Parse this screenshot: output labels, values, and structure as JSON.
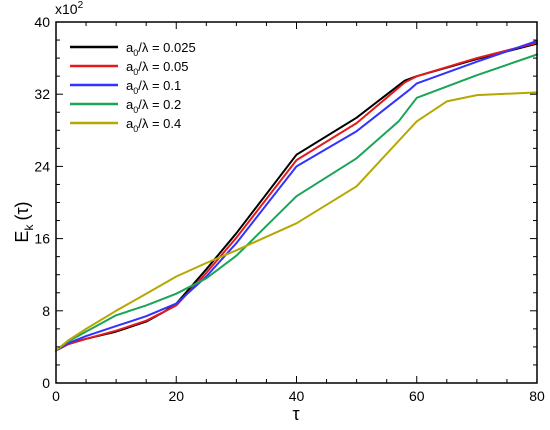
{
  "chart_data": {
    "type": "line",
    "xlabel": "τ",
    "ylabel": "E",
    "ylabel_subscript": "k",
    "ylabel_suffix": "(τ)",
    "y_multiplier": "x10",
    "y_multiplier_exp": "2",
    "xlim": [
      0,
      80
    ],
    "ylim": [
      0,
      40
    ],
    "x_ticks": [
      0,
      20,
      40,
      60,
      80
    ],
    "y_ticks": [
      0,
      8,
      16,
      24,
      32,
      40
    ],
    "grid": false,
    "legend_position": "top-left",
    "legend_prefix": "a",
    "legend_prefix_sub": "0",
    "series": [
      {
        "name": "/λ = 0.025",
        "color": "#000000",
        "x": [
          0,
          2,
          5,
          10,
          15,
          18,
          20,
          25,
          30,
          40,
          50,
          58,
          60,
          70,
          80
        ],
        "y": [
          3.6,
          4.3,
          4.9,
          5.7,
          6.8,
          7.9,
          8.8,
          12.6,
          16.6,
          25.3,
          29.4,
          33.5,
          34.0,
          35.9,
          37.6
        ]
      },
      {
        "name": "/λ = 0.05",
        "color": "#e41a1c",
        "x": [
          0,
          2,
          5,
          10,
          15,
          18,
          20,
          25,
          30,
          40,
          50,
          58,
          60,
          70,
          80
        ],
        "y": [
          3.6,
          4.3,
          4.9,
          5.8,
          6.9,
          7.9,
          8.6,
          12.2,
          16.1,
          24.7,
          28.8,
          33.3,
          34.0,
          36.0,
          37.7
        ]
      },
      {
        "name": "/λ = 0.1",
        "color": "#3333ff",
        "x": [
          0,
          2,
          5,
          10,
          15,
          20,
          25,
          30,
          40,
          50,
          59,
          60,
          70,
          80
        ],
        "y": [
          3.6,
          4.4,
          5.2,
          6.3,
          7.4,
          8.8,
          11.8,
          15.5,
          24.0,
          27.9,
          32.6,
          33.2,
          35.6,
          37.9
        ]
      },
      {
        "name": "/λ = 0.2",
        "color": "#1aa556",
        "x": [
          0,
          2,
          5,
          10,
          15,
          20,
          25,
          30,
          40,
          50,
          57,
          60,
          70,
          80
        ],
        "y": [
          3.6,
          4.6,
          5.7,
          7.5,
          8.6,
          9.9,
          11.6,
          14.1,
          20.7,
          24.9,
          29.0,
          31.6,
          34.1,
          36.4
        ]
      },
      {
        "name": "/λ = 0.4",
        "color": "#b5a800",
        "x": [
          0,
          2,
          5,
          10,
          15,
          20,
          25,
          30,
          40,
          50,
          60,
          65,
          70,
          80
        ],
        "y": [
          3.6,
          4.7,
          6.0,
          8.0,
          9.9,
          11.8,
          13.3,
          14.7,
          17.7,
          21.8,
          29.0,
          31.2,
          31.9,
          32.2
        ]
      }
    ]
  }
}
